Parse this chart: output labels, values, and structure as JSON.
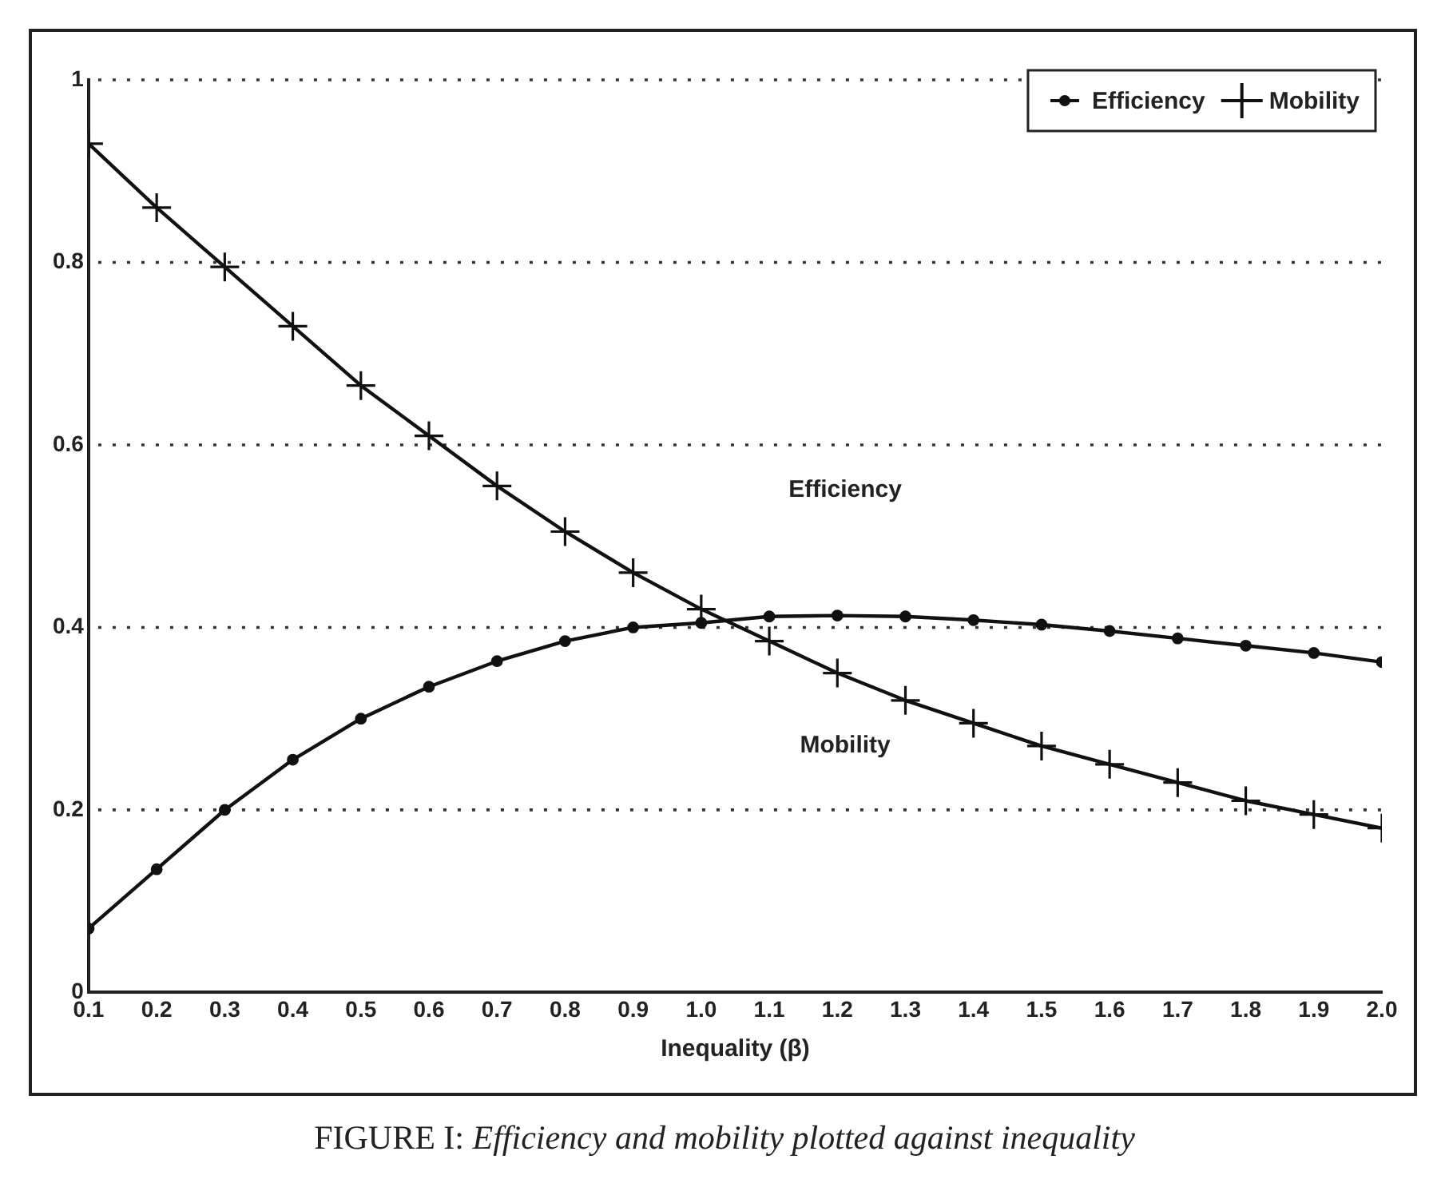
{
  "chart_data": {
    "type": "line",
    "xlabel": "Inequality (β)",
    "x": [
      0.1,
      0.2,
      0.3,
      0.4,
      0.5,
      0.6,
      0.7,
      0.8,
      0.9,
      1.0,
      1.1,
      1.2,
      1.3,
      1.4,
      1.5,
      1.6,
      1.7,
      1.8,
      1.9,
      2.0
    ],
    "series": [
      {
        "name": "Efficiency",
        "color": "#111111",
        "marker": "circle",
        "values": [
          0.07,
          0.135,
          0.2,
          0.255,
          0.3,
          0.335,
          0.363,
          0.385,
          0.4,
          0.405,
          0.412,
          0.413,
          0.412,
          0.408,
          0.403,
          0.396,
          0.388,
          0.38,
          0.372,
          0.362
        ]
      },
      {
        "name": "Mobility",
        "color": "#111111",
        "marker": "cross",
        "values": [
          0.93,
          0.86,
          0.795,
          0.73,
          0.665,
          0.61,
          0.555,
          0.505,
          0.46,
          0.42,
          0.385,
          0.35,
          0.32,
          0.295,
          0.27,
          0.25,
          0.23,
          0.21,
          0.195,
          0.18
        ]
      }
    ],
    "xlim": [
      0.1,
      2.0
    ],
    "xticks": [
      0.1,
      0.2,
      0.3,
      0.4,
      0.5,
      0.6,
      0.7,
      0.8,
      0.9,
      {
        "value": 1,
        "label": "1.0"
      },
      1.1,
      1.2,
      1.3,
      1.4,
      1.5,
      1.6,
      1.7,
      1.8,
      1.9,
      {
        "value": 2,
        "label": "2.0"
      }
    ],
    "ylim": [
      0,
      1
    ],
    "yticks": [
      0,
      0.2,
      0.4,
      0.6,
      0.8,
      1
    ],
    "grid": "y",
    "legend": "top right",
    "line_style": "solid",
    "annotations": [
      "Efficiency",
      "Mobility",
      "FIGURE I:   Efficiency and mobility plotted against inequality"
    ]
  }
}
